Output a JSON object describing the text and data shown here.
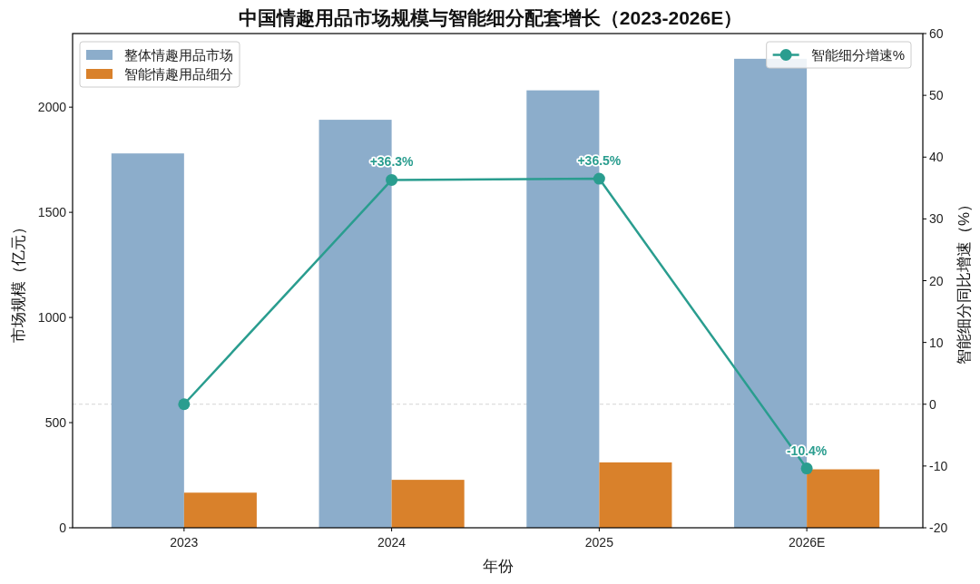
{
  "chart_data": {
    "type": "bar",
    "title": "中国情趣用品市场规模与智能细分配套增长（2023-2026E）",
    "xlabel": "年份",
    "ylabel": "市场规模（亿元）",
    "y2label": "智能细分同比增速（%）",
    "categories": [
      "2023",
      "2024",
      "2025",
      "2026E"
    ],
    "series": [
      {
        "name": "整体情趣用品市场",
        "color": "#8cadcb",
        "values": [
          1780,
          1940,
          2080,
          2230
        ]
      },
      {
        "name": "智能情趣用品细分",
        "color": "#d9812b",
        "values": [
          167,
          228,
          311,
          278
        ]
      },
      {
        "name": "智能细分增速%",
        "type": "line",
        "axis": "y2",
        "color": "#2a9d8f",
        "marker": "circle",
        "values": [
          0,
          36.3,
          36.5,
          -10.4
        ],
        "value_labels": [
          null,
          "+36.3%",
          "+36.5%",
          "-10.4%"
        ]
      }
    ],
    "ylim": [
      0,
      2350
    ],
    "yticks": [
      0,
      500,
      1000,
      1500,
      2000
    ],
    "y2lim": [
      -20,
      60
    ],
    "y2ticks": [
      -20,
      -10,
      0,
      10,
      20,
      30,
      40,
      50,
      60
    ],
    "ref_lines": [
      {
        "axis": "y2",
        "value": 0,
        "color": "#c8c8c8",
        "line_style": "dashed"
      }
    ],
    "legend": "top"
  }
}
